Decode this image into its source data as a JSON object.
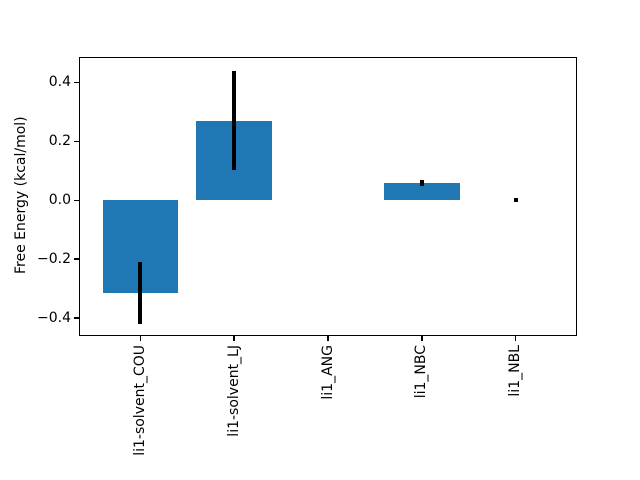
{
  "figure": {
    "background": "#ffffff"
  },
  "chart_data": {
    "type": "bar",
    "title": "",
    "xlabel": "",
    "ylabel": "Free Energy (kcal/mol)",
    "categories": [
      "li1-solvent_COU",
      "li1-solvent_LJ",
      "li1_ANG",
      "li1_NBC",
      "li1_NBL"
    ],
    "values": [
      -0.315,
      0.27,
      0.0,
      0.058,
      0.0
    ],
    "errors": [
      0.105,
      0.168,
      0.0,
      0.011,
      0.006
    ],
    "bar_color": "#1f77b4",
    "error_bar_color": "#000000",
    "bar_width_fraction": 0.8,
    "xlim": [
      -0.64,
      4.64
    ],
    "ylim": [
      -0.458,
      0.483
    ],
    "yticks": [
      -0.4,
      -0.2,
      0.0,
      0.2,
      0.4
    ],
    "ytick_labels": [
      "−0.4",
      "−0.2",
      "0.0",
      "0.2",
      "0.4"
    ],
    "xtick_rotation": 90,
    "grid": false,
    "legend": "none"
  }
}
